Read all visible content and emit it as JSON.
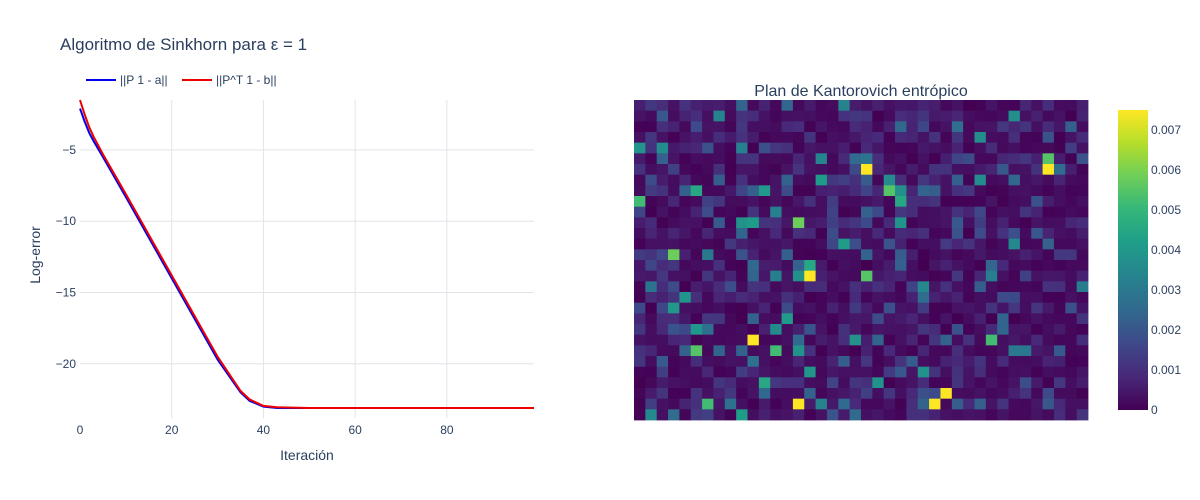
{
  "chart_data": [
    {
      "type": "line",
      "title": "Algoritmo de Sinkhorn para ε = 1",
      "xlabel": "Iteración",
      "ylabel": "Log-error",
      "xlim": [
        0,
        99
      ],
      "ylim": [
        -23.8,
        -1.5
      ],
      "x_ticks": [
        0,
        20,
        40,
        60,
        80
      ],
      "y_ticks": [
        -5,
        -10,
        -15,
        -20
      ],
      "x_tick_labels": [
        "0",
        "20",
        "40",
        "60",
        "80"
      ],
      "y_tick_labels": [
        "−5",
        "−10",
        "−15",
        "−20"
      ],
      "grid": true,
      "legend_position": "top-left",
      "series": [
        {
          "name": "||P 1 - a||",
          "color": "#0000ee",
          "points": [
            [
              0,
              -2.1
            ],
            [
              1,
              -3.0
            ],
            [
              2,
              -3.8
            ],
            [
              3,
              -4.4
            ],
            [
              5,
              -5.5
            ],
            [
              10,
              -8.3
            ],
            [
              20,
              -14.0
            ],
            [
              30,
              -19.7
            ],
            [
              35,
              -22.0
            ],
            [
              37,
              -22.6
            ],
            [
              40,
              -23.0
            ],
            [
              43,
              -23.1
            ],
            [
              50,
              -23.1
            ],
            [
              60,
              -23.1
            ],
            [
              80,
              -23.1
            ],
            [
              99,
              -23.1
            ]
          ]
        },
        {
          "name": "||P^T 1 - b||",
          "color": "#ee0000",
          "points": [
            [
              0,
              -1.5
            ],
            [
              1,
              -2.5
            ],
            [
              2,
              -3.4
            ],
            [
              3,
              -4.1
            ],
            [
              5,
              -5.3
            ],
            [
              10,
              -8.1
            ],
            [
              20,
              -13.8
            ],
            [
              30,
              -19.5
            ],
            [
              35,
              -21.9
            ],
            [
              37,
              -22.5
            ],
            [
              40,
              -22.95
            ],
            [
              43,
              -23.05
            ],
            [
              50,
              -23.1
            ],
            [
              60,
              -23.1
            ],
            [
              80,
              -23.1
            ],
            [
              99,
              -23.1
            ]
          ]
        }
      ]
    },
    {
      "type": "heatmap",
      "title": "Plan de Kantorovich entrópico",
      "rows": 30,
      "cols": 40,
      "colorscale": "Viridis",
      "zmin": 0,
      "zmax": 0.0075,
      "colorbar_ticks": [
        0,
        0.001,
        0.002,
        0.003,
        0.004,
        0.005,
        0.006,
        0.007
      ],
      "colorbar_tick_labels": [
        "0",
        "0.001",
        "0.002",
        "0.003",
        "0.004",
        "0.005",
        "0.006",
        "0.007"
      ],
      "highlights": [
        {
          "row": 6,
          "col": 20,
          "value": 0.0075
        },
        {
          "row": 6,
          "col": 36,
          "value": 0.0075
        },
        {
          "row": 16,
          "col": 15,
          "value": 0.0075
        },
        {
          "row": 22,
          "col": 10,
          "value": 0.0075
        },
        {
          "row": 27,
          "col": 27,
          "value": 0.0075
        },
        {
          "row": 28,
          "col": 14,
          "value": 0.0075
        },
        {
          "row": 28,
          "col": 26,
          "value": 0.0075
        },
        {
          "row": 5,
          "col": 36,
          "value": 0.0055
        },
        {
          "row": 8,
          "col": 22,
          "value": 0.0055
        },
        {
          "row": 9,
          "col": 0,
          "value": 0.0052
        },
        {
          "row": 9,
          "col": 23,
          "value": 0.0045
        },
        {
          "row": 11,
          "col": 14,
          "value": 0.0058
        },
        {
          "row": 14,
          "col": 3,
          "value": 0.0058
        },
        {
          "row": 15,
          "col": 15,
          "value": 0.0045
        },
        {
          "row": 16,
          "col": 20,
          "value": 0.0055
        },
        {
          "row": 23,
          "col": 5,
          "value": 0.0055
        },
        {
          "row": 23,
          "col": 12,
          "value": 0.0052
        },
        {
          "row": 22,
          "col": 31,
          "value": 0.0052
        },
        {
          "row": 26,
          "col": 11,
          "value": 0.0045
        },
        {
          "row": 28,
          "col": 6,
          "value": 0.0052
        },
        {
          "row": 8,
          "col": 5,
          "value": 0.0045
        },
        {
          "row": 8,
          "col": 11,
          "value": 0.004
        }
      ]
    }
  ]
}
